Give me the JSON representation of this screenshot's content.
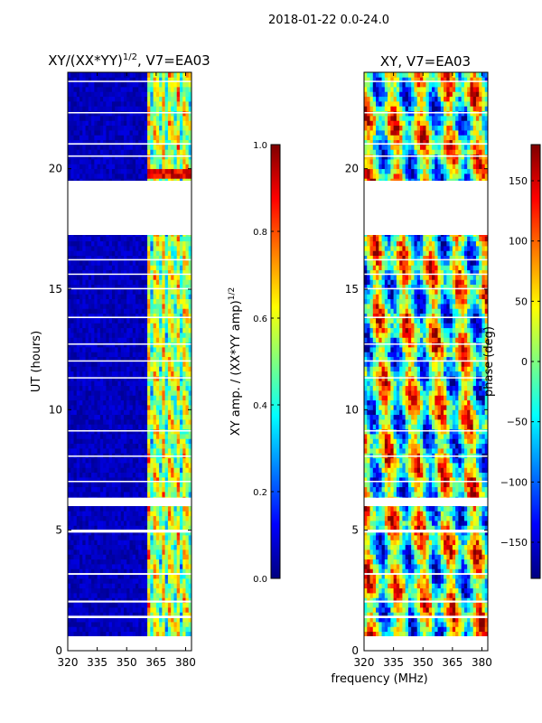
{
  "figure": {
    "suptitle": "2018-01-22 0.0-24.0",
    "shared_xlabel": "frequency (MHz)"
  },
  "colors": {
    "jet_stops": [
      "#00007f",
      "#0000ff",
      "#007fff",
      "#00ffff",
      "#7fff7f",
      "#ffff00",
      "#ff7f00",
      "#ff0000",
      "#7f0000"
    ],
    "missing_data": "#ffffff"
  },
  "chart_data": [
    {
      "type": "heatmap",
      "title_base": "XY/(XX*YY)",
      "title_power": "1/2",
      "title_suffix": ", V7=EA03",
      "ylabel": "UT (hours)",
      "xlim": [
        320,
        383
      ],
      "ylim": [
        0,
        24
      ],
      "xticks": [
        320,
        335,
        350,
        365,
        380
      ],
      "yticks": [
        0,
        5,
        10,
        15,
        20
      ],
      "quantity": "normalized XY amplitude",
      "gaps_ut": [
        [
          0,
          0.6
        ],
        [
          1.35,
          1.45
        ],
        [
          2.0,
          2.08
        ],
        [
          3.15,
          3.22
        ],
        [
          4.9,
          5.02
        ],
        [
          6.0,
          6.35
        ],
        [
          7.0,
          7.05
        ],
        [
          8.05,
          8.1
        ],
        [
          9.1,
          9.15
        ],
        [
          11.3,
          11.35
        ],
        [
          12.0,
          12.05
        ],
        [
          12.7,
          12.75
        ],
        [
          13.8,
          13.86
        ],
        [
          15.0,
          15.05
        ],
        [
          15.6,
          15.65
        ],
        [
          16.2,
          16.25
        ],
        [
          17.25,
          19.5
        ],
        [
          20.5,
          20.55
        ],
        [
          21.0,
          21.06
        ],
        [
          22.3,
          22.35
        ],
        [
          23.6,
          23.65
        ]
      ],
      "bright_band_mhz": [
        360,
        383
      ],
      "colorbar": {
        "label_base": "XY amp. / (XX*YY amp)",
        "label_power": "1/2",
        "min": 0.0,
        "max": 1.0,
        "ticks": [
          "0.0",
          "0.2",
          "0.4",
          "0.6",
          "0.8",
          "1.0"
        ],
        "tick_values": [
          0.0,
          0.2,
          0.4,
          0.6,
          0.8,
          1.0
        ]
      }
    },
    {
      "type": "heatmap",
      "title": "XY, V7=EA03",
      "ylabel": "",
      "xlim": [
        320,
        383
      ],
      "ylim": [
        0,
        24
      ],
      "xticks": [
        320,
        335,
        350,
        365,
        380
      ],
      "yticks": [
        0,
        5,
        10,
        15,
        20
      ],
      "quantity": "XY phase (deg)",
      "gaps_ut": [
        [
          0,
          0.6
        ],
        [
          1.35,
          1.45
        ],
        [
          2.0,
          2.08
        ],
        [
          3.15,
          3.22
        ],
        [
          4.9,
          5.02
        ],
        [
          6.0,
          6.35
        ],
        [
          7.0,
          7.05
        ],
        [
          8.05,
          8.1
        ],
        [
          9.1,
          9.15
        ],
        [
          11.3,
          11.35
        ],
        [
          12.0,
          12.05
        ],
        [
          12.7,
          12.75
        ],
        [
          13.8,
          13.86
        ],
        [
          15.0,
          15.05
        ],
        [
          15.6,
          15.65
        ],
        [
          16.2,
          16.25
        ],
        [
          17.25,
          19.5
        ],
        [
          20.5,
          20.55
        ],
        [
          21.0,
          21.06
        ],
        [
          22.3,
          22.35
        ],
        [
          23.6,
          23.65
        ]
      ],
      "colorbar": {
        "label": "phase (deg)",
        "min": -180,
        "max": 180,
        "ticks": [
          "150",
          "100",
          "50",
          "0",
          "−50",
          "−100",
          "−150"
        ],
        "tick_values": [
          150,
          100,
          50,
          0,
          -50,
          -100,
          -150
        ]
      }
    }
  ]
}
